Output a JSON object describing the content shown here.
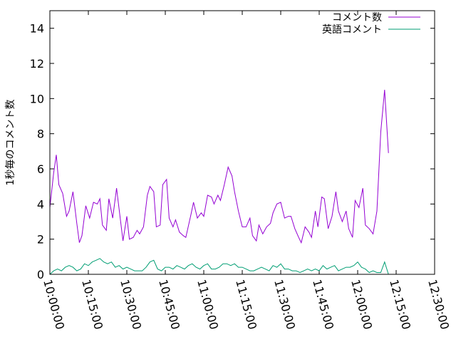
{
  "chart_data": {
    "type": "line",
    "title": "",
    "ylabel": "1秒毎のコメント数",
    "xlabel": "",
    "ylim": [
      0,
      15
    ],
    "yticks": [
      0,
      2,
      4,
      6,
      8,
      10,
      12,
      14
    ],
    "xlim": [
      "10:00:00",
      "12:30:00"
    ],
    "xticks": [
      "10:00:00",
      "10:15:00",
      "10:30:00",
      "10:45:00",
      "11:00:00",
      "11:15:00",
      "11:30:00",
      "11:45:00",
      "12:00:00",
      "12:15:00",
      "12:30:00"
    ],
    "grid": false,
    "legend_position": "top-right",
    "series": [
      {
        "name": "コメント数",
        "color": "#9400d3",
        "points": [
          [
            "10:00:00",
            3.8
          ],
          [
            "10:01:30",
            5.8
          ],
          [
            "10:02:30",
            6.8
          ],
          [
            "10:03:30",
            5.1
          ],
          [
            "10:05:00",
            4.6
          ],
          [
            "10:06:30",
            3.3
          ],
          [
            "10:07:30",
            3.6
          ],
          [
            "10:09:00",
            4.7
          ],
          [
            "10:10:30",
            2.9
          ],
          [
            "10:11:30",
            1.8
          ],
          [
            "10:12:30",
            2.2
          ],
          [
            "10:14:00",
            3.9
          ],
          [
            "10:15:30",
            3.2
          ],
          [
            "10:17:00",
            4.1
          ],
          [
            "10:18:30",
            4.0
          ],
          [
            "10:19:30",
            4.3
          ],
          [
            "10:20:30",
            2.8
          ],
          [
            "10:22:00",
            2.5
          ],
          [
            "10:23:00",
            4.3
          ],
          [
            "10:24:30",
            3.2
          ],
          [
            "10:26:00",
            4.9
          ],
          [
            "10:27:00",
            3.7
          ],
          [
            "10:28:30",
            1.9
          ],
          [
            "10:30:00",
            3.3
          ],
          [
            "10:31:00",
            2.0
          ],
          [
            "10:32:30",
            2.1
          ],
          [
            "10:34:00",
            2.5
          ],
          [
            "10:35:00",
            2.3
          ],
          [
            "10:36:30",
            2.7
          ],
          [
            "10:38:00",
            4.5
          ],
          [
            "10:39:00",
            5.0
          ],
          [
            "10:40:30",
            4.7
          ],
          [
            "10:41:30",
            2.7
          ],
          [
            "10:43:00",
            2.8
          ],
          [
            "10:44:00",
            5.1
          ],
          [
            "10:45:30",
            5.4
          ],
          [
            "10:46:30",
            3.2
          ],
          [
            "10:48:00",
            2.7
          ],
          [
            "10:49:00",
            3.1
          ],
          [
            "10:50:30",
            2.4
          ],
          [
            "10:52:00",
            2.2
          ],
          [
            "10:53:00",
            2.1
          ],
          [
            "10:55:00",
            3.4
          ],
          [
            "10:56:00",
            4.1
          ],
          [
            "10:57:30",
            3.2
          ],
          [
            "10:59:00",
            3.5
          ],
          [
            "11:00:00",
            3.3
          ],
          [
            "11:01:30",
            4.5
          ],
          [
            "11:03:00",
            4.4
          ],
          [
            "11:04:00",
            4.0
          ],
          [
            "11:05:30",
            4.5
          ],
          [
            "11:06:30",
            4.2
          ],
          [
            "11:08:00",
            5.1
          ],
          [
            "11:09:30",
            6.1
          ],
          [
            "11:11:00",
            5.6
          ],
          [
            "11:12:00",
            4.7
          ],
          [
            "11:13:30",
            3.6
          ],
          [
            "11:15:00",
            2.7
          ],
          [
            "11:16:30",
            2.7
          ],
          [
            "11:18:00",
            3.2
          ],
          [
            "11:19:00",
            2.2
          ],
          [
            "11:20:30",
            1.9
          ],
          [
            "11:21:30",
            2.8
          ],
          [
            "11:23:00",
            2.3
          ],
          [
            "11:24:30",
            2.7
          ],
          [
            "11:26:00",
            2.9
          ],
          [
            "11:27:00",
            3.5
          ],
          [
            "11:28:30",
            4.0
          ],
          [
            "11:30:00",
            4.1
          ],
          [
            "11:31:30",
            3.2
          ],
          [
            "11:33:00",
            3.3
          ],
          [
            "11:34:00",
            3.3
          ],
          [
            "11:35:30",
            2.6
          ],
          [
            "11:37:00",
            2.1
          ],
          [
            "11:38:00",
            1.8
          ],
          [
            "11:39:30",
            2.7
          ],
          [
            "11:41:00",
            2.4
          ],
          [
            "11:42:00",
            2.1
          ],
          [
            "11:43:30",
            3.6
          ],
          [
            "11:44:30",
            2.7
          ],
          [
            "11:46:00",
            4.4
          ],
          [
            "11:47:00",
            4.3
          ],
          [
            "11:48:30",
            2.6
          ],
          [
            "11:50:00",
            3.3
          ],
          [
            "11:51:30",
            4.7
          ],
          [
            "11:52:30",
            3.6
          ],
          [
            "11:54:00",
            3.0
          ],
          [
            "11:55:30",
            3.6
          ],
          [
            "11:56:30",
            2.6
          ],
          [
            "11:58:00",
            2.1
          ],
          [
            "11:59:00",
            4.2
          ],
          [
            "12:00:30",
            3.8
          ],
          [
            "12:02:00",
            4.9
          ],
          [
            "12:03:00",
            2.8
          ],
          [
            "12:04:30",
            2.6
          ],
          [
            "12:06:00",
            2.3
          ],
          [
            "12:07:30",
            3.6
          ],
          [
            "12:09:00",
            8.1
          ],
          [
            "12:10:30",
            10.5
          ],
          [
            "12:12:00",
            6.9
          ]
        ]
      },
      {
        "name": "英語コメント",
        "color": "#009e73",
        "points": [
          [
            "10:00:00",
            0.0
          ],
          [
            "10:01:30",
            0.2
          ],
          [
            "10:03:00",
            0.3
          ],
          [
            "10:04:30",
            0.2
          ],
          [
            "10:06:00",
            0.4
          ],
          [
            "10:07:30",
            0.5
          ],
          [
            "10:09:00",
            0.4
          ],
          [
            "10:10:30",
            0.2
          ],
          [
            "10:12:00",
            0.3
          ],
          [
            "10:13:30",
            0.6
          ],
          [
            "10:15:00",
            0.5
          ],
          [
            "10:16:30",
            0.7
          ],
          [
            "10:18:00",
            0.8
          ],
          [
            "10:19:30",
            0.9
          ],
          [
            "10:21:00",
            0.7
          ],
          [
            "10:22:30",
            0.6
          ],
          [
            "10:24:00",
            0.7
          ],
          [
            "10:25:30",
            0.4
          ],
          [
            "10:27:00",
            0.5
          ],
          [
            "10:28:30",
            0.3
          ],
          [
            "10:30:00",
            0.4
          ],
          [
            "10:31:30",
            0.3
          ],
          [
            "10:33:00",
            0.2
          ],
          [
            "10:34:30",
            0.2
          ],
          [
            "10:36:00",
            0.2
          ],
          [
            "10:37:30",
            0.4
          ],
          [
            "10:39:00",
            0.7
          ],
          [
            "10:40:30",
            0.8
          ],
          [
            "10:42:00",
            0.3
          ],
          [
            "10:43:30",
            0.2
          ],
          [
            "10:45:00",
            0.4
          ],
          [
            "10:46:30",
            0.4
          ],
          [
            "10:48:00",
            0.3
          ],
          [
            "10:49:30",
            0.5
          ],
          [
            "10:51:00",
            0.4
          ],
          [
            "10:52:30",
            0.3
          ],
          [
            "10:54:00",
            0.5
          ],
          [
            "10:55:30",
            0.6
          ],
          [
            "10:57:00",
            0.4
          ],
          [
            "10:58:30",
            0.3
          ],
          [
            "11:00:00",
            0.5
          ],
          [
            "11:01:30",
            0.6
          ],
          [
            "11:03:00",
            0.3
          ],
          [
            "11:04:30",
            0.3
          ],
          [
            "11:06:00",
            0.4
          ],
          [
            "11:07:30",
            0.6
          ],
          [
            "11:09:00",
            0.6
          ],
          [
            "11:10:30",
            0.5
          ],
          [
            "11:12:00",
            0.6
          ],
          [
            "11:13:30",
            0.4
          ],
          [
            "11:15:00",
            0.4
          ],
          [
            "11:16:30",
            0.3
          ],
          [
            "11:18:00",
            0.2
          ],
          [
            "11:19:30",
            0.2
          ],
          [
            "11:21:00",
            0.3
          ],
          [
            "11:22:30",
            0.4
          ],
          [
            "11:24:00",
            0.3
          ],
          [
            "11:25:30",
            0.2
          ],
          [
            "11:27:00",
            0.5
          ],
          [
            "11:28:30",
            0.4
          ],
          [
            "11:30:00",
            0.6
          ],
          [
            "11:31:30",
            0.3
          ],
          [
            "11:33:00",
            0.3
          ],
          [
            "11:34:30",
            0.2
          ],
          [
            "11:36:00",
            0.2
          ],
          [
            "11:37:30",
            0.1
          ],
          [
            "11:39:00",
            0.2
          ],
          [
            "11:40:30",
            0.3
          ],
          [
            "11:42:00",
            0.2
          ],
          [
            "11:43:30",
            0.3
          ],
          [
            "11:45:00",
            0.2
          ],
          [
            "11:46:30",
            0.5
          ],
          [
            "11:48:00",
            0.3
          ],
          [
            "11:49:30",
            0.4
          ],
          [
            "11:51:00",
            0.5
          ],
          [
            "11:52:30",
            0.2
          ],
          [
            "11:54:00",
            0.3
          ],
          [
            "11:55:30",
            0.4
          ],
          [
            "11:57:00",
            0.4
          ],
          [
            "11:58:30",
            0.5
          ],
          [
            "12:00:00",
            0.7
          ],
          [
            "12:01:30",
            0.4
          ],
          [
            "12:03:00",
            0.3
          ],
          [
            "12:04:30",
            0.1
          ],
          [
            "12:06:00",
            0.2
          ],
          [
            "12:07:30",
            0.1
          ],
          [
            "12:09:00",
            0.1
          ],
          [
            "12:10:30",
            0.7
          ],
          [
            "12:12:00",
            0.0
          ]
        ]
      }
    ]
  }
}
